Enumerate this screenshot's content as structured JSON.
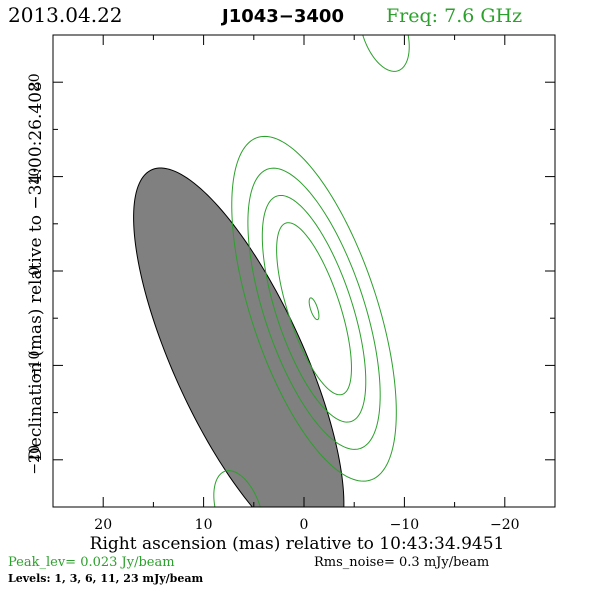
{
  "header": {
    "date": "2013.04.22",
    "source": "J1043−3400",
    "frequency": "Freq: 7.6 GHz"
  },
  "footer": {
    "peak_level": "Peak_lev=  0.023 Jy/beam",
    "rms_noise": "Rms_noise=   0.3 mJy/beam",
    "levels": "Levels:   1,    3,    6,   11,   23 mJy/beam"
  },
  "colors": {
    "contour": "#2ca02c",
    "beam_fill": "#808080",
    "axes": "#000000"
  },
  "chart_data": {
    "type": "contour",
    "xlabel": "Right ascension (mas) relative to 10:43:34.9451",
    "ylabel": "Declination (mas) relative to −34:00:26.408",
    "xlim": [
      25,
      -25
    ],
    "ylim": [
      -25,
      25
    ],
    "x_ticks": [
      20,
      10,
      0,
      -10,
      -20
    ],
    "y_ticks": [
      20,
      10,
      0,
      -10,
      -20
    ],
    "x_tick_labels": [
      "20",
      "10",
      "0",
      "−10",
      "−20"
    ],
    "y_tick_labels": [
      "20",
      "10",
      "0",
      "−10",
      "−20"
    ],
    "contour_levels_mJy": [
      1,
      3,
      6,
      11,
      23
    ],
    "peak_Jy_per_beam": 0.023,
    "rms_noise_mJy_per_beam": 0.3,
    "main_component": {
      "center": [
        -1.0,
        -4.0
      ],
      "position_angle_deg": 17,
      "contours": [
        {
          "level_mJy": 1,
          "semi_major": 19.0,
          "semi_minor": 6.3
        },
        {
          "level_mJy": 3,
          "semi_major": 15.5,
          "semi_minor": 5.0
        },
        {
          "level_mJy": 6,
          "semi_major": 12.5,
          "semi_minor": 3.8
        },
        {
          "level_mJy": 11,
          "semi_major": 9.5,
          "semi_minor": 2.6
        },
        {
          "level_mJy": 23,
          "semi_major": 1.2,
          "semi_minor": 0.35
        }
      ]
    },
    "sidelobes": [
      {
        "level_mJy": 1,
        "center": [
          -8.0,
          25.5
        ],
        "semi_major": 4.5,
        "semi_minor": 2.2,
        "position_angle_deg": 17
      },
      {
        "level_mJy": 1,
        "center": [
          6.5,
          -25.5
        ],
        "semi_major": 4.5,
        "semi_minor": 2.2,
        "position_angle_deg": 17
      }
    ],
    "beam": {
      "center": [
        6.5,
        -9.5
      ],
      "major_fwhm": 44.0,
      "minor_fwhm": 13.0,
      "position_angle_deg": 23
    }
  }
}
